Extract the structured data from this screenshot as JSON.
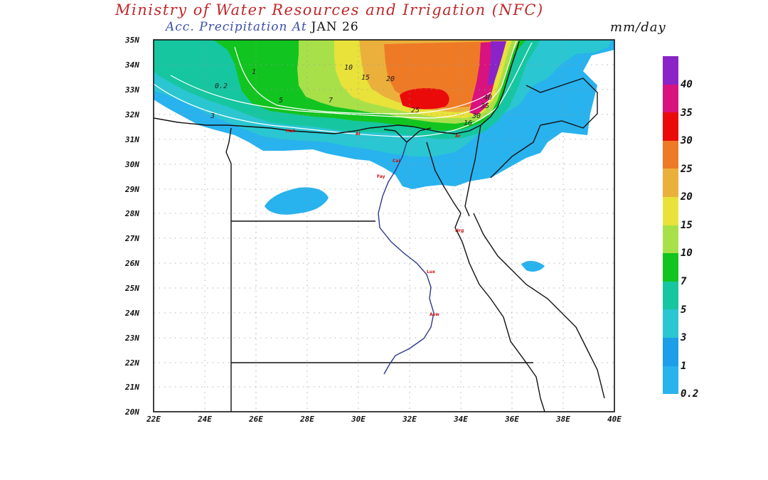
{
  "header": {
    "title": "Ministry of Water Resources and Irrigation (NFC)",
    "subtitle": "Acc. Precipitation",
    "at_label": "At",
    "date": "JAN 26",
    "units": "mm/day"
  },
  "axes": {
    "lat_labels": [
      "35N",
      "34N",
      "33N",
      "32N",
      "31N",
      "30N",
      "29N",
      "28N",
      "27N",
      "26N",
      "25N",
      "24N",
      "23N",
      "22N",
      "21N",
      "20N"
    ],
    "lon_labels": [
      "22E",
      "24E",
      "26E",
      "28E",
      "30E",
      "32E",
      "34E",
      "36E",
      "38E",
      "40E"
    ]
  },
  "legend": {
    "labels": [
      "40",
      "35",
      "30",
      "25",
      "20",
      "15",
      "10",
      "7",
      "5",
      "3",
      "1",
      "0.2"
    ],
    "colors": [
      "#8a24c8",
      "#d8127e",
      "#ea0a0a",
      "#ee7a26",
      "#ebb03c",
      "#e8e23a",
      "#a8e04a",
      "#12c420",
      "#16c6a0",
      "#2ac6d2",
      "#1c9ee8",
      "#28b2ee"
    ]
  },
  "contour_labels": [
    "0.2",
    "1",
    "3",
    "5",
    "7",
    "10",
    "15",
    "20",
    "25",
    "30",
    "35",
    "40",
    "16"
  ],
  "city_labels": [
    "Mat",
    "Al",
    "Ar",
    "Cai",
    "Fay",
    "Hrg",
    "Lux",
    "Asw"
  ]
}
